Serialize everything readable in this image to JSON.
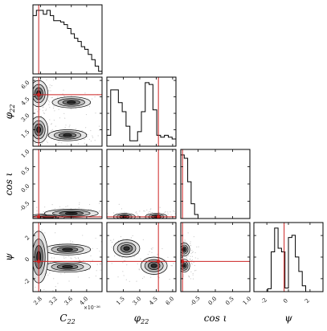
{
  "chart_data": {
    "type": "corner",
    "parameters": [
      {
        "key": "C22",
        "label": "C",
        "sub": "22",
        "range": [
          2.6,
          4.4
        ],
        "ticks": [
          "2.8",
          "3.2",
          "3.6",
          "4.0"
        ],
        "tick_values": [
          2.8,
          3.2,
          3.6,
          4.0
        ],
        "scale_note": "×10⁻²⁶",
        "truth": 2.75
      },
      {
        "key": "phi22",
        "label": "φ",
        "sub": "22",
        "range": [
          0,
          6.3
        ],
        "ticks": [
          "1.5",
          "3.0",
          "4.5",
          "6.0"
        ],
        "tick_values": [
          1.5,
          3.0,
          4.5,
          6.0
        ],
        "truth": 4.7
      },
      {
        "key": "cosi",
        "label": "cos ι",
        "sub": "",
        "range": [
          -1.0,
          1.0
        ],
        "ticks": [
          "-0.5",
          "0.0",
          "0.5",
          "1.0"
        ],
        "tick_values": [
          -0.5,
          0.0,
          0.5,
          1.0
        ],
        "truth": -0.95
      },
      {
        "key": "psi",
        "label": "ψ",
        "sub": "",
        "range": [
          -3.2,
          3.2
        ],
        "ticks": [
          "-2",
          "0",
          "2"
        ],
        "tick_values": [
          -2,
          0,
          2
        ],
        "truth": -0.4
      }
    ],
    "row_tick_labels": {
      "phi22": [
        "1.5",
        "3.0",
        "4.5",
        "6.0"
      ],
      "cosi": [
        "-0.5",
        "0.0",
        "0.5",
        "1.0"
      ],
      "psi": [
        "-2",
        "0",
        "2"
      ]
    },
    "histograms": {
      "C22": {
        "edges_range": [
          2.6,
          4.4
        ],
        "values": [
          0.9,
          0.98,
          0.98,
          0.92,
          0.98,
          0.9,
          0.82,
          0.82,
          0.8,
          0.76,
          0.7,
          0.62,
          0.55,
          0.5,
          0.42,
          0.38,
          0.3,
          0.22,
          0.12,
          0.04
        ]
      },
      "phi22": {
        "edges_range": [
          0,
          6.3
        ],
        "values": [
          0.12,
          0.62,
          0.62,
          0.48,
          0.38,
          0.22,
          0.06,
          0.06,
          0.16,
          0.38,
          0.7,
          0.68,
          0.4,
          0.12,
          0.1,
          0.12,
          0.1,
          0.08
        ]
      },
      "cosi": {
        "edges_range": [
          -1.0,
          1.0
        ],
        "values": [
          0.95,
          0.9,
          0.55,
          0.22,
          0.06,
          0,
          0,
          0,
          0,
          0,
          0,
          0,
          0,
          0,
          0,
          0,
          0,
          0,
          0,
          0
        ]
      },
      "psi": {
        "edges_range": [
          -3.2,
          3.2
        ],
        "values": [
          0,
          0,
          0,
          0,
          0.04,
          0.55,
          0.88,
          0.6,
          0.55,
          0.05,
          0.75,
          0.78,
          0.48,
          0.28,
          0.08,
          0,
          0,
          0,
          0,
          0
        ]
      }
    },
    "blobs": [
      {
        "pair": [
          "C22",
          "phi22"
        ],
        "x": 3.6,
        "y": 4.0,
        "sx": 0.25,
        "sy": 0.25
      },
      {
        "pair": [
          "C22",
          "phi22"
        ],
        "x": 3.5,
        "y": 1.0,
        "sx": 0.25,
        "sy": 0.25
      },
      {
        "pair": [
          "C22",
          "phi22"
        ],
        "x": 2.75,
        "y": 4.8,
        "sx": 0.12,
        "sy": 0.6
      },
      {
        "pair": [
          "C22",
          "phi22"
        ],
        "x": 2.75,
        "y": 1.5,
        "sx": 0.12,
        "sy": 0.6
      },
      {
        "pair": [
          "C22",
          "cosi"
        ],
        "x": 3.0,
        "y": -0.97,
        "sx": 0.3,
        "sy": 0.05
      },
      {
        "pair": [
          "C22",
          "cosi"
        ],
        "x": 3.6,
        "y": -0.85,
        "sx": 0.35,
        "sy": 0.06
      },
      {
        "pair": [
          "phi22",
          "cosi"
        ],
        "x": 1.6,
        "y": -0.95,
        "sx": 0.5,
        "sy": 0.05
      },
      {
        "pair": [
          "phi22",
          "cosi"
        ],
        "x": 4.5,
        "y": -0.95,
        "sx": 0.5,
        "sy": 0.05
      },
      {
        "pair": [
          "C22",
          "psi"
        ],
        "x": 3.5,
        "y": 0.7,
        "sx": 0.3,
        "sy": 0.25
      },
      {
        "pair": [
          "C22",
          "psi"
        ],
        "x": 3.5,
        "y": -0.9,
        "sx": 0.3,
        "sy": 0.25
      },
      {
        "pair": [
          "C22",
          "psi"
        ],
        "x": 2.75,
        "y": 0.0,
        "sx": 0.12,
        "sy": 1.2
      },
      {
        "pair": [
          "phi22",
          "psi"
        ],
        "x": 1.8,
        "y": 0.8,
        "sx": 0.6,
        "sy": 0.4
      },
      {
        "pair": [
          "phi22",
          "psi"
        ],
        "x": 4.3,
        "y": -0.8,
        "sx": 0.6,
        "sy": 0.4
      },
      {
        "pair": [
          "cosi",
          "psi"
        ],
        "x": -0.9,
        "y": 0.7,
        "sx": 0.08,
        "sy": 0.3
      },
      {
        "pair": [
          "cosi",
          "psi"
        ],
        "x": -0.9,
        "y": -0.8,
        "sx": 0.08,
        "sy": 0.3
      }
    ],
    "truth_color": "#cc2222",
    "contour_color": "#000000",
    "grid": false
  }
}
